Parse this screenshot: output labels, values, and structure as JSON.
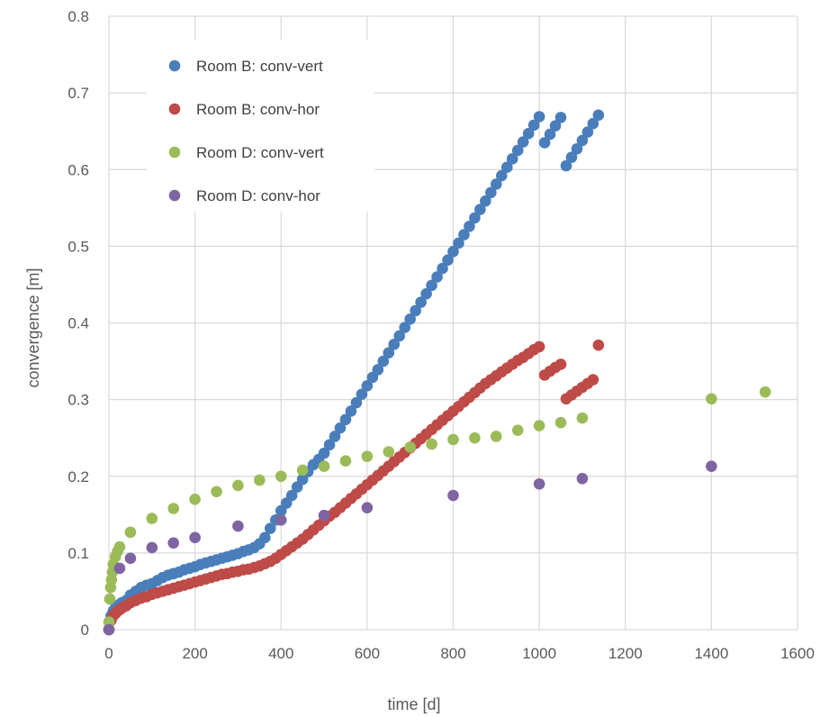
{
  "chart_data": {
    "type": "scatter",
    "title": "",
    "xlabel": "time [d]",
    "ylabel": "convergence [m]",
    "xlim": [
      0,
      1600
    ],
    "ylim": [
      0,
      0.8
    ],
    "x_ticks": [
      "0",
      "200",
      "400",
      "600",
      "800",
      "1000",
      "1200",
      "1400",
      "1600"
    ],
    "y_ticks": [
      "0",
      "0.1",
      "0.2",
      "0.3",
      "0.4",
      "0.5",
      "0.6",
      "0.7",
      "0.8"
    ],
    "grid": true,
    "legend_position": "top-left",
    "series": [
      {
        "name": "Room B: conv-vert",
        "color": "#4a7ebb",
        "x": [
          0,
          5,
          10,
          15,
          20,
          25,
          30,
          40,
          50,
          62.5,
          75,
          87.5,
          100,
          112.5,
          125,
          137.5,
          150,
          162.5,
          175,
          187.5,
          200,
          212.5,
          225,
          237.5,
          250,
          262.5,
          275,
          287.5,
          300,
          312.5,
          325,
          337.5,
          350,
          362.5,
          375,
          387.5,
          400,
          412.5,
          425,
          437.5,
          450,
          462.5,
          475,
          487.5,
          500,
          512.5,
          525,
          537.5,
          550,
          562.5,
          575,
          587.5,
          600,
          612.5,
          625,
          637.5,
          650,
          662.5,
          675,
          687.5,
          700,
          712.5,
          725,
          737.5,
          750,
          762.5,
          775,
          787.5,
          800,
          812.5,
          825,
          837.5,
          850,
          862.5,
          875,
          887.5,
          900,
          912.5,
          925,
          937.5,
          950,
          962.5,
          975,
          987.5,
          1000,
          1012.5,
          1025,
          1037.5,
          1050,
          1062.5,
          1075,
          1087.5,
          1100,
          1112.5,
          1125,
          1137.5
        ],
        "y": [
          0,
          0.018,
          0.024,
          0.028,
          0.031,
          0.033,
          0.035,
          0.038,
          0.045,
          0.05,
          0.055,
          0.058,
          0.06,
          0.064,
          0.068,
          0.071,
          0.073,
          0.075,
          0.078,
          0.08,
          0.082,
          0.085,
          0.087,
          0.089,
          0.091,
          0.093,
          0.095,
          0.097,
          0.099,
          0.102,
          0.104,
          0.107,
          0.112,
          0.12,
          0.132,
          0.143,
          0.155,
          0.165,
          0.175,
          0.186,
          0.196,
          0.206,
          0.215,
          0.222,
          0.23,
          0.241,
          0.252,
          0.263,
          0.274,
          0.285,
          0.296,
          0.307,
          0.318,
          0.329,
          0.339,
          0.35,
          0.361,
          0.372,
          0.383,
          0.394,
          0.405,
          0.416,
          0.427,
          0.438,
          0.449,
          0.46,
          0.471,
          0.482,
          0.493,
          0.504,
          0.515,
          0.526,
          0.537,
          0.548,
          0.559,
          0.57,
          0.581,
          0.592,
          0.603,
          0.614,
          0.625,
          0.636,
          0.647,
          0.658,
          0.669,
          0.635,
          0.646,
          0.657,
          0.668,
          0.605,
          0.616,
          0.627,
          0.638,
          0.649,
          0.66,
          0.671
        ]
      },
      {
        "name": "Room B: conv-hor",
        "color": "#be4b48",
        "x": [
          0,
          5,
          10,
          15,
          20,
          25,
          30,
          40,
          50,
          62.5,
          75,
          87.5,
          100,
          112.5,
          125,
          137.5,
          150,
          162.5,
          175,
          187.5,
          200,
          212.5,
          225,
          237.5,
          250,
          262.5,
          275,
          287.5,
          300,
          312.5,
          325,
          337.5,
          350,
          362.5,
          375,
          387.5,
          400,
          412.5,
          425,
          437.5,
          450,
          462.5,
          475,
          487.5,
          500,
          512.5,
          525,
          537.5,
          550,
          562.5,
          575,
          587.5,
          600,
          612.5,
          625,
          637.5,
          650,
          662.5,
          675,
          687.5,
          700,
          712.5,
          725,
          737.5,
          750,
          762.5,
          775,
          787.5,
          800,
          812.5,
          825,
          837.5,
          850,
          862.5,
          875,
          887.5,
          900,
          912.5,
          925,
          937.5,
          950,
          962.5,
          975,
          987.5,
          1000,
          1012.5,
          1025,
          1037.5,
          1050,
          1062.5,
          1075,
          1087.5,
          1100,
          1112.5,
          1125,
          1137.5
        ],
        "y": [
          0,
          0.012,
          0.018,
          0.021,
          0.024,
          0.026,
          0.028,
          0.031,
          0.035,
          0.038,
          0.041,
          0.043,
          0.046,
          0.048,
          0.05,
          0.052,
          0.054,
          0.056,
          0.058,
          0.06,
          0.062,
          0.064,
          0.066,
          0.068,
          0.07,
          0.072,
          0.073,
          0.075,
          0.076,
          0.078,
          0.079,
          0.081,
          0.083,
          0.086,
          0.089,
          0.093,
          0.098,
          0.103,
          0.108,
          0.113,
          0.118,
          0.124,
          0.13,
          0.136,
          0.142,
          0.148,
          0.153,
          0.159,
          0.165,
          0.171,
          0.177,
          0.183,
          0.189,
          0.195,
          0.201,
          0.207,
          0.213,
          0.219,
          0.225,
          0.231,
          0.237,
          0.243,
          0.249,
          0.255,
          0.261,
          0.267,
          0.273,
          0.279,
          0.285,
          0.291,
          0.297,
          0.303,
          0.309,
          0.315,
          0.321,
          0.326,
          0.331,
          0.336,
          0.341,
          0.346,
          0.351,
          0.355,
          0.36,
          0.365,
          0.369,
          0.332,
          0.337,
          0.342,
          0.346,
          0.301,
          0.306,
          0.311,
          0.316,
          0.321,
          0.326,
          0.371
        ]
      },
      {
        "name": "Room D: conv-vert",
        "color": "#9bbb59",
        "x": [
          0,
          2,
          4,
          6,
          8,
          10,
          15,
          20,
          25,
          50,
          100,
          150,
          200,
          250,
          300,
          350,
          400,
          450,
          500,
          550,
          600,
          650,
          700,
          750,
          800,
          850,
          900,
          950,
          1000,
          1050,
          1100,
          1400,
          1525
        ],
        "y": [
          0.01,
          0.04,
          0.055,
          0.065,
          0.075,
          0.085,
          0.095,
          0.102,
          0.108,
          0.127,
          0.145,
          0.158,
          0.17,
          0.18,
          0.188,
          0.195,
          0.2,
          0.208,
          0.213,
          0.22,
          0.226,
          0.232,
          0.238,
          0.242,
          0.248,
          0.25,
          0.252,
          0.26,
          0.266,
          0.27,
          0.276,
          0.301,
          0.31
        ]
      },
      {
        "name": "Room D: conv-hor",
        "color": "#7f64a2",
        "x": [
          0,
          25,
          50,
          100,
          150,
          200,
          300,
          400,
          500,
          600,
          800,
          1000,
          1100,
          1400
        ],
        "y": [
          0,
          0.08,
          0.093,
          0.107,
          0.113,
          0.12,
          0.135,
          0.143,
          0.149,
          0.159,
          0.175,
          0.19,
          0.197,
          0.213
        ]
      }
    ]
  }
}
